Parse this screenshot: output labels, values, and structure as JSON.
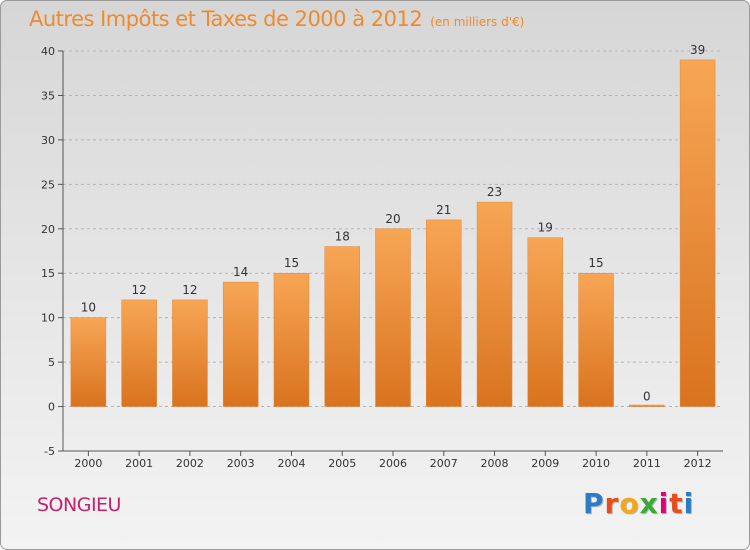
{
  "title": "Autres Impôts et Taxes de 2000 à 2012",
  "subtitle": "(en milliers d'€)",
  "commune": "SONGIEU",
  "logo": {
    "letters": [
      "P",
      "r",
      "o",
      "x",
      "i",
      "t",
      "i"
    ],
    "colors": [
      "#2b7cc7",
      "#e84e1b",
      "#f2a81d",
      "#3aa935",
      "#e2007a",
      "#e84e1b",
      "#2b7cc7"
    ]
  },
  "colors": {
    "title": "#ef8a2e",
    "commune": "#c8206b",
    "bar_light": "#f7a655",
    "bar_dark": "#d9731f"
  },
  "chart_data": {
    "type": "bar",
    "title": "Autres Impôts et Taxes de 2000 à 2012",
    "subtitle": "(en milliers d'€)",
    "categories": [
      "2000",
      "2001",
      "2002",
      "2003",
      "2004",
      "2005",
      "2006",
      "2007",
      "2008",
      "2009",
      "2010",
      "2011",
      "2012"
    ],
    "values": [
      10,
      12,
      12,
      14,
      15,
      18,
      20,
      21,
      23,
      19,
      15,
      0,
      39
    ],
    "ylim": [
      -5,
      40
    ],
    "yticks": [
      -5,
      0,
      5,
      10,
      15,
      20,
      25,
      30,
      35,
      40
    ],
    "grid": "dashed horizontal",
    "legend": "none"
  }
}
